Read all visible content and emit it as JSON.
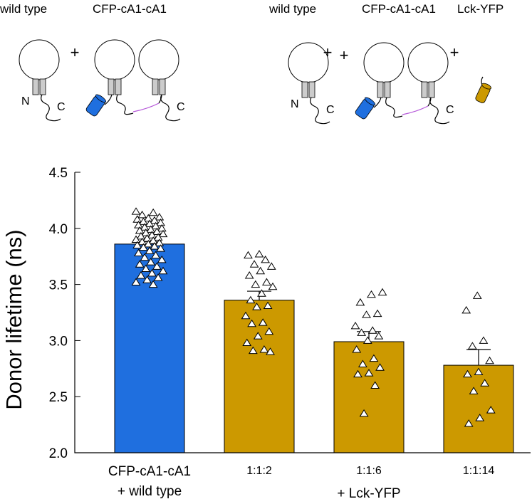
{
  "diagram": {
    "wild_type": "wild type",
    "cfp": "CFP-cA1-cA1",
    "lck": "Lck-YFP",
    "plus": "+",
    "n_term": "N",
    "c_term": "C"
  },
  "chart_data": {
    "type": "bar",
    "ylabel": "Donor lifetime (ns)",
    "categories": [
      "CFP-cA1-cA1",
      "1:1:2",
      "1:1:6",
      "1:1:14"
    ],
    "annotations": [
      "+ wild type",
      "+ Lck-YFP"
    ],
    "values": [
      3.86,
      3.36,
      2.99,
      2.78
    ],
    "errors": [
      0.02,
      0.08,
      0.09,
      0.14
    ],
    "colors": [
      "#1f6fdf",
      "#cc9900",
      "#cc9900",
      "#cc9900"
    ],
    "points": [
      [
        4.15,
        4.14,
        4.12,
        4.1,
        4.09,
        4.08,
        4.07,
        4.06,
        4.05,
        4.04,
        4.03,
        4.02,
        4.01,
        4.0,
        3.99,
        3.98,
        3.97,
        3.96,
        3.95,
        3.94,
        3.93,
        3.92,
        3.91,
        3.9,
        3.89,
        3.88,
        3.87,
        3.86,
        3.85,
        3.84,
        3.83,
        3.82,
        3.8,
        3.78,
        3.76,
        3.74,
        3.72,
        3.7,
        3.68,
        3.66,
        3.64,
        3.62,
        3.6,
        3.58,
        3.56,
        3.54,
        3.52,
        3.5
      ],
      [
        3.77,
        3.76,
        3.72,
        3.68,
        3.66,
        3.62,
        3.58,
        3.52,
        3.5,
        3.48,
        3.42,
        3.36,
        3.31,
        3.3,
        3.22,
        3.16,
        3.15,
        3.08,
        3.04,
        2.98,
        2.92,
        2.91,
        2.9
      ],
      [
        3.43,
        3.41,
        3.34,
        3.24,
        3.23,
        3.13,
        3.09,
        3.07,
        3.04,
        3.0,
        2.92,
        2.84,
        2.79,
        2.76,
        2.71,
        2.7,
        2.6,
        2.35
      ],
      [
        3.4,
        3.27,
        3.0,
        2.95,
        2.82,
        2.72,
        2.7,
        2.62,
        2.55,
        2.38,
        2.31,
        2.26
      ]
    ],
    "ylim": [
      2,
      4.5
    ],
    "yticks": [
      {
        "value": 2,
        "label": "2.0"
      },
      2.5,
      {
        "value": 3,
        "label": "3.0"
      },
      3.5,
      {
        "value": 4,
        "label": "4.0"
      },
      4.5
    ]
  }
}
